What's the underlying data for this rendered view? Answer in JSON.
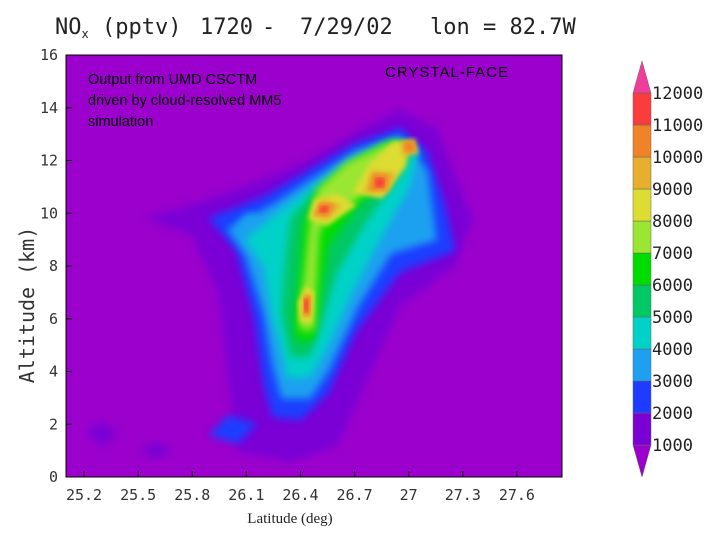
{
  "chart_data": {
    "type": "heatmap",
    "title": "NOx (pptv)    1720 - 7/29/02    lon = 82.7W",
    "title_parts": {
      "species": "NO",
      "subscript": "x",
      "units": "(pptv)",
      "time": "1720",
      "dash": "-",
      "date": "7/29/02",
      "longitude": "lon = 82.7W"
    },
    "annotation": [
      "Output from UMD CSCTM",
      "driven by cloud-resolved MM5",
      "simulation"
    ],
    "campaign_label": "CRYSTAL-FACE",
    "xlabel": "Latitude (deg)",
    "ylabel": "Altitude (km)",
    "xlim": [
      25.1,
      27.85
    ],
    "ylim": [
      0,
      16
    ],
    "x_ticks": [
      25.2,
      25.5,
      25.8,
      26.1,
      26.4,
      26.7,
      27.0,
      27.3,
      27.6
    ],
    "x_tick_labels": [
      "25.2",
      "25.5",
      "25.8",
      "26.1",
      "26.4",
      "26.7",
      "27",
      "27.3",
      "27.6"
    ],
    "y_ticks": [
      0,
      2,
      4,
      6,
      8,
      10,
      12,
      14,
      16
    ],
    "y_tick_labels": [
      "0",
      "2",
      "4",
      "6",
      "8",
      "10",
      "12",
      "14",
      "16"
    ],
    "colorbar": {
      "levels": [
        1000,
        2000,
        3000,
        4000,
        5000,
        6000,
        7000,
        8000,
        9000,
        10000,
        11000,
        12000
      ],
      "labels": [
        "1000",
        "2000",
        "3000",
        "4000",
        "5000",
        "6000",
        "7000",
        "8000",
        "9000",
        "10000",
        "11000",
        "12000"
      ],
      "colors": [
        "#9b00cc",
        "#7a00d6",
        "#1e3cff",
        "#1ea0f0",
        "#00d2c8",
        "#00c864",
        "#00dc00",
        "#9be632",
        "#dcdc32",
        "#e6af2d",
        "#f08228",
        "#fa3c3c",
        "#f03c9b"
      ],
      "background_color": "#9b00cc"
    },
    "features": [
      {
        "region": "upper anvil core",
        "lat": 26.83,
        "alt_km": 11.2,
        "nox_pptv": 11500
      },
      {
        "region": "upper anvil peak",
        "lat": 27.0,
        "alt_km": 12.5,
        "nox_pptv": 10500
      },
      {
        "region": "anvil left maximum",
        "lat": 26.5,
        "alt_km": 10.1,
        "nox_pptv": 11500
      },
      {
        "region": "mid-level core",
        "lat": 26.43,
        "alt_km": 6.4,
        "nox_pptv": 11500
      },
      {
        "region": "anvil body",
        "lat": 26.75,
        "alt_km": 11.2,
        "nox_pptv": 7500
      },
      {
        "region": "updraft column",
        "lat": 26.38,
        "alt_km": 6.0,
        "nox_pptv": 5000
      },
      {
        "region": "west outflow",
        "lat": 26.15,
        "alt_km": 9.0,
        "nox_pptv": 4500
      },
      {
        "region": "lower column",
        "lat": 26.42,
        "alt_km": 4.0,
        "nox_pptv": 3200
      },
      {
        "region": "east outflow",
        "lat": 27.1,
        "alt_km": 9.2,
        "nox_pptv": 3000
      }
    ]
  }
}
